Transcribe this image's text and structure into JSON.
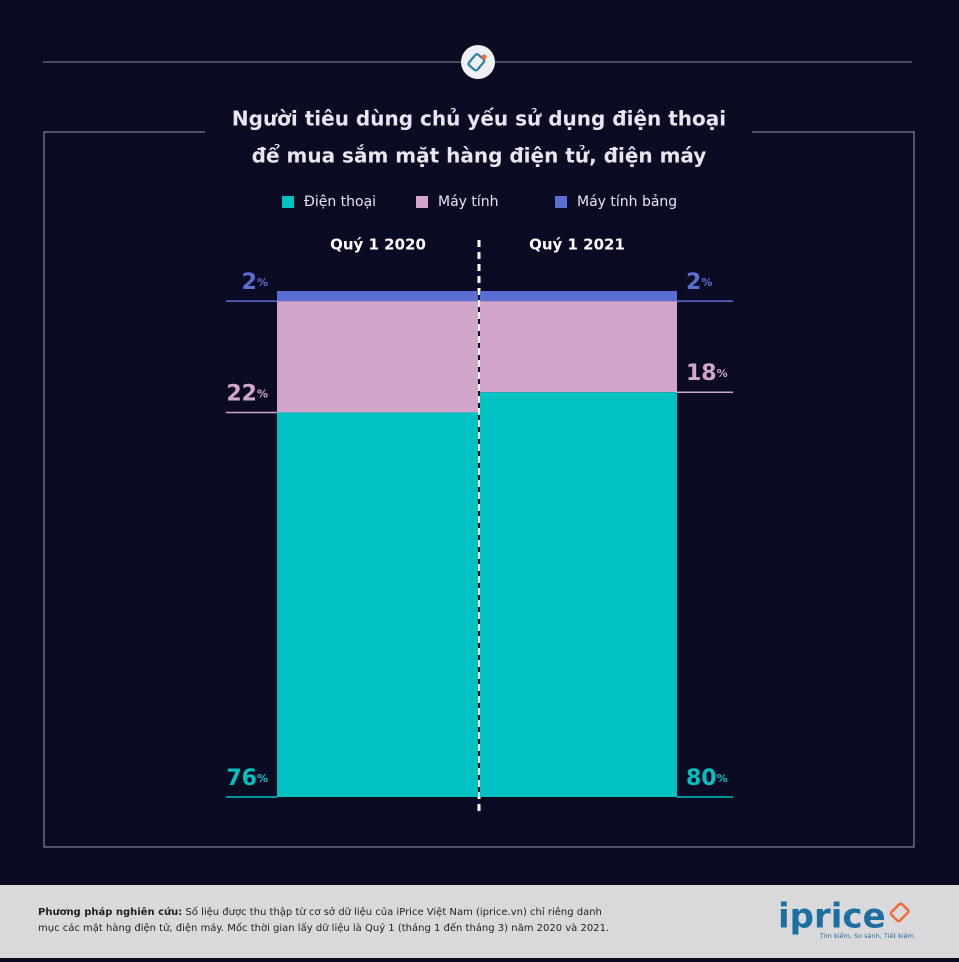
{
  "chart_data": {
    "type": "stacked-bar",
    "title": [
      "Người tiêu dùng chủ yếu sử dụng điện thoại",
      "để mua sắm mặt hàng điện tử, điện máy"
    ],
    "categories": [
      "Quý 1 2020",
      "Quý 1 2021"
    ],
    "series": [
      {
        "name": "Điện thoại",
        "color": "#00c2c2",
        "values": [
          76,
          80
        ],
        "value_labels": [
          "76%",
          "80%"
        ]
      },
      {
        "name": "Máy tính",
        "color": "#d2a6cc",
        "values": [
          22,
          18
        ],
        "value_labels": [
          "22%",
          "18%"
        ]
      },
      {
        "name": "Máy tính bảng",
        "color": "#5b6fd2",
        "values": [
          2,
          2
        ],
        "value_labels": [
          "2%",
          "2%"
        ]
      }
    ],
    "ylim": [
      0,
      100
    ]
  },
  "footer": {
    "method_label": "Phương pháp nghiên cứu:",
    "method_text": [
      "Số liệu được thu thập từ cơ sở dữ liệu của iPrice Việt Nam (iprice.vn) chỉ riêng danh",
      "mục các mặt hàng điện tử, điện máy. Mốc thời gian lấy dữ liệu là Quý 1 (tháng 1 đến tháng 3) năm 2020 và 2021."
    ],
    "logo": "iprice",
    "tagline": "Tìm kiếm, So sánh, Tiết kiệm"
  }
}
